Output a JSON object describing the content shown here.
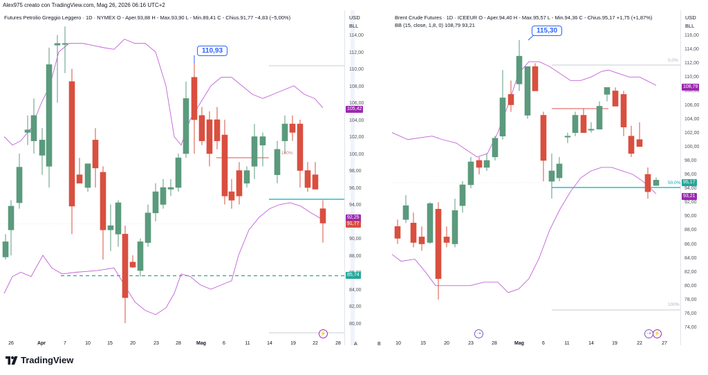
{
  "header": {
    "text": "Alex975 creato con TradingView.com, Mag 26, 2026 06:16 UTC+2"
  },
  "left": {
    "legend": "Futures Petrolio Greggio Leggero · 1D · NYMEX  O - Aper.93,88  H - Max.93,90  L - Min.89,41  C - Chius.91,77  −4,83 (−5,00%)",
    "axis_currency": "USD",
    "axis_unit": "BLL",
    "price_ticks": [
      "114,00",
      "112,00",
      "110,00",
      "108,00",
      "106,00",
      "104,00",
      "102,00",
      "100,00",
      "98,00",
      "96,00",
      "94,00",
      "92,00",
      "90,00",
      "88,00",
      "86,00",
      "84,00",
      "82,00",
      "80,00"
    ],
    "date_ticks": [
      "26",
      "Apr",
      "7",
      "10",
      "15",
      "20",
      "23",
      "28",
      "Mag",
      "6",
      "11",
      "14",
      "19",
      "22",
      "28"
    ],
    "callout": "110,93",
    "tags": {
      "bb_upper": "105,42",
      "bb_lower": "92,25",
      "close": "91,77",
      "support": "85,74"
    },
    "pct_label": "100%",
    "axis_button": "A",
    "bolt_icon": "⚡",
    "colors": {
      "up": "#5b9a7d",
      "down": "#d94f3f",
      "bb": "#c061d6",
      "support": "#26a69a",
      "support_tag": "#26a69a",
      "bb_tag": "#9c27b0",
      "close_tag": "#d94f3f",
      "hline": "#00acc1"
    }
  },
  "right": {
    "legend": "Brent Crude Futures · 1D · ICEEUR  O - Aper.94,40  H - Max.95,57  L - Min.94,36  C - Chius.95,17  +1,75 (+1,87%)",
    "legend_bb": "BB (15, close, 1,8, 0)  108,79  93,21",
    "axis_currency": "USD",
    "axis_unit": "BLL",
    "price_ticks": [
      "116,00",
      "114,00",
      "112,00",
      "110,00",
      "108,00",
      "106,00",
      "104,00",
      "102,00",
      "100,00",
      "98,00",
      "96,00",
      "94,00",
      "92,00",
      "90,00",
      "88,00",
      "86,00",
      "84,00",
      "82,00",
      "80,00",
      "78,00",
      "76,00",
      "74,00"
    ],
    "date_ticks": [
      "10",
      "15",
      "20",
      "23",
      "28",
      "Mag",
      "6",
      "11",
      "14",
      "19",
      "22",
      "27"
    ],
    "callout": "115,30",
    "tags": {
      "bb_upper": "108,79",
      "close": "95,17",
      "bb_lower": "93,21"
    },
    "fib_labels": {
      "top": "0,0%",
      "mid": "50,0%",
      "bottom": "100%"
    },
    "axis_button": "B",
    "jump_icon": "⇢",
    "colors": {
      "up": "#5b9a7d",
      "down": "#d94f3f",
      "bb": "#c061d6",
      "hline": "#00acc1",
      "bb_tag": "#9c27b0",
      "close_tag": "#26a69a"
    }
  },
  "footer": {
    "brand": "TradingView"
  }
}
